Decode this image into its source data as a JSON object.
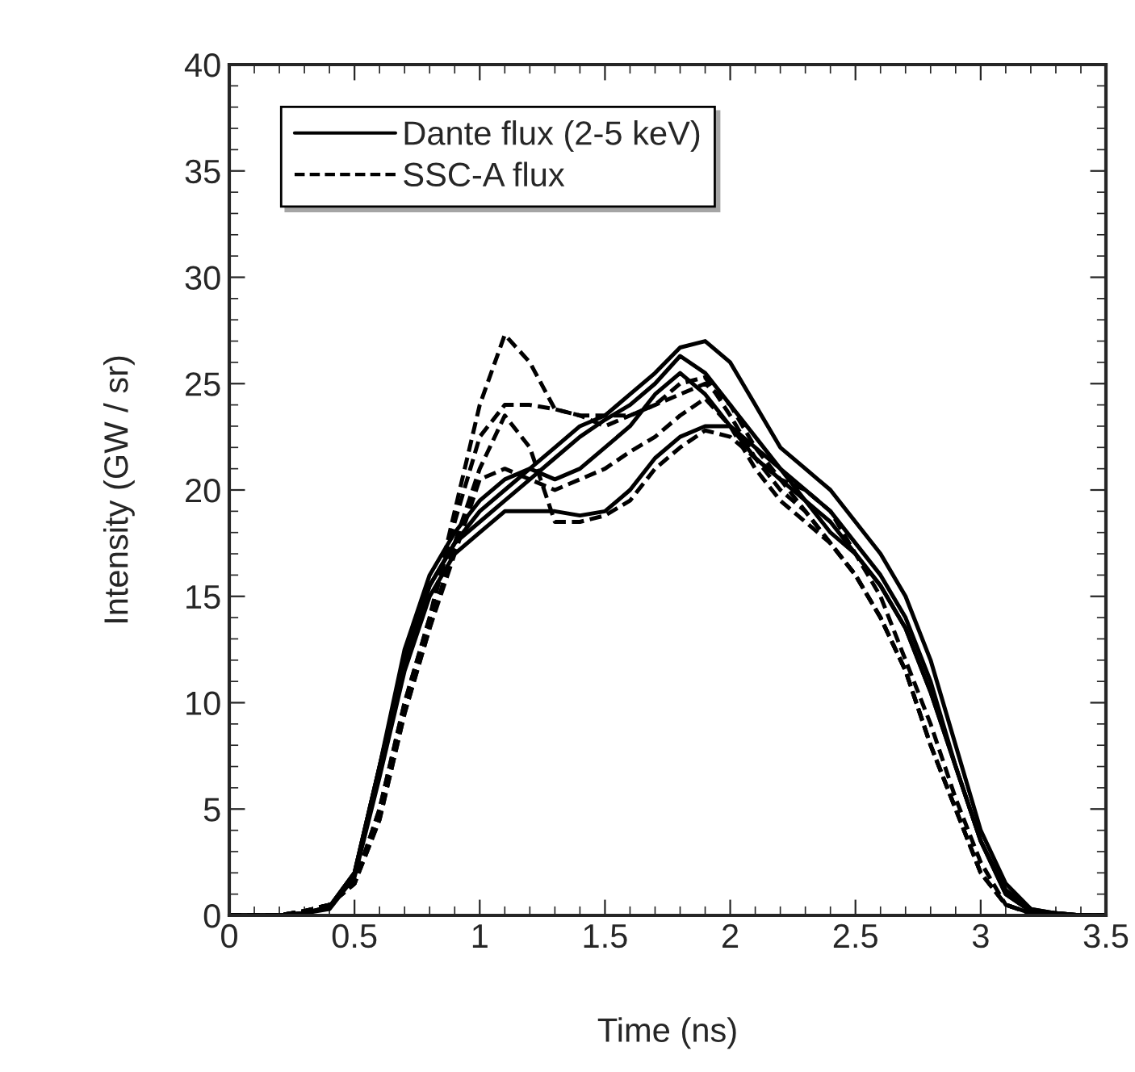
{
  "chart_data": {
    "type": "line",
    "xlabel": "Time (ns)",
    "ylabel": "Intensity (GW / sr)",
    "x": [
      0,
      0.1,
      0.2,
      0.3,
      0.4,
      0.5,
      0.6,
      0.7,
      0.8,
      0.9,
      1.0,
      1.1,
      1.2,
      1.3,
      1.4,
      1.5,
      1.6,
      1.7,
      1.8,
      1.9,
      2.0,
      2.1,
      2.2,
      2.3,
      2.4,
      2.5,
      2.6,
      2.7,
      2.8,
      2.9,
      3.0,
      3.1,
      3.2,
      3.3,
      3.4,
      3.5
    ],
    "series": [
      {
        "name": "Dante flux (2-5 keV)",
        "color": "#000000",
        "line_style": "solid",
        "values": [
          0,
          0,
          0,
          0.1,
          0.4,
          2,
          7,
          12,
          15.5,
          17.5,
          19,
          20,
          21,
          22,
          23,
          23.5,
          24.5,
          25.5,
          26.7,
          27,
          26,
          24,
          22,
          21,
          20,
          18.5,
          17,
          15,
          12,
          8,
          4,
          1.5,
          0.3,
          0.1,
          0,
          0
        ]
      },
      {
        "color": "#000000",
        "line_style": "solid",
        "values": [
          0,
          0,
          0,
          0.1,
          0.4,
          2,
          7,
          12,
          15.5,
          17.5,
          18.5,
          19.5,
          20.5,
          21.5,
          22.5,
          23.3,
          24,
          25,
          26.3,
          25.5,
          24,
          22.5,
          21,
          20,
          19,
          17.5,
          16,
          14,
          11,
          7,
          3.5,
          1.2,
          0.3,
          0.1,
          0,
          0
        ]
      },
      {
        "color": "#000000",
        "line_style": "solid",
        "values": [
          0,
          0,
          0,
          0.1,
          0.3,
          1.8,
          6.5,
          11.5,
          15,
          17,
          18,
          19,
          19,
          19,
          18.8,
          19,
          20,
          21.5,
          22.5,
          23,
          23,
          22,
          21,
          19.5,
          18,
          17,
          15.5,
          13.5,
          10.5,
          7,
          3.5,
          1,
          0.2,
          0.1,
          0,
          0
        ]
      },
      {
        "color": "#000000",
        "line_style": "solid",
        "values": [
          0,
          0,
          0,
          0.1,
          0.4,
          2,
          7,
          12.5,
          16,
          18,
          19.5,
          20.5,
          21,
          20.5,
          21,
          22,
          23,
          24.5,
          25.5,
          24.5,
          23,
          21.5,
          20.5,
          19.5,
          18.5,
          17,
          15.5,
          13.5,
          10.5,
          7,
          3.5,
          1,
          0.2,
          0.1,
          0,
          0
        ]
      },
      {
        "name": "SSC-A flux",
        "color": "#000000",
        "line_style": "dashed",
        "values": [
          0,
          0,
          0,
          0.2,
          0.5,
          1.5,
          5,
          10,
          14,
          19,
          24,
          27.3,
          26,
          23.8,
          23.5,
          23.5,
          23.5,
          24,
          24.5,
          25,
          24,
          22,
          20.5,
          19,
          17.5,
          16,
          14,
          11.5,
          8,
          5,
          2,
          0.5,
          0.1,
          0,
          0,
          0
        ]
      },
      {
        "color": "#000000",
        "line_style": "dashed",
        "values": [
          0,
          0,
          0,
          0.2,
          0.5,
          1.5,
          5,
          10,
          14,
          18.5,
          22.5,
          24,
          24,
          23.8,
          23.5,
          23,
          23.5,
          24,
          25,
          25.3,
          23.5,
          21.5,
          20,
          19,
          17.5,
          16,
          14,
          11.5,
          8,
          5,
          2,
          0.5,
          0.1,
          0,
          0,
          0
        ]
      },
      {
        "color": "#000000",
        "line_style": "dashed",
        "values": [
          0,
          0,
          0,
          0.2,
          0.5,
          1.5,
          4.5,
          9.5,
          13.5,
          17.5,
          21,
          23.5,
          22,
          18.5,
          18.5,
          18.8,
          19.5,
          21,
          22,
          22.8,
          22.5,
          21.5,
          20.5,
          20,
          19,
          17,
          15,
          12,
          9,
          5.5,
          2.5,
          0.5,
          0.1,
          0,
          0,
          0
        ]
      },
      {
        "color": "#000000",
        "line_style": "dashed",
        "values": [
          0,
          0,
          0,
          0.2,
          0.5,
          1.5,
          4.5,
          9.5,
          13.5,
          17,
          20.5,
          21,
          20.5,
          20,
          20.5,
          21,
          21.8,
          22.5,
          23.5,
          24.3,
          23,
          21,
          19.5,
          18.5,
          17.5,
          16,
          14,
          11.5,
          8,
          5,
          2,
          0.5,
          0.1,
          0,
          0,
          0
        ]
      }
    ],
    "xlim": [
      0,
      3.5
    ],
    "xticks": [
      0,
      0.5,
      1,
      1.5,
      2,
      2.5,
      3,
      3.5
    ],
    "ylim": [
      0,
      40
    ],
    "yticks": [
      0,
      5,
      10,
      15,
      20,
      25,
      30,
      35,
      40
    ],
    "grid": false,
    "legend": "top left",
    "marker": "none"
  }
}
